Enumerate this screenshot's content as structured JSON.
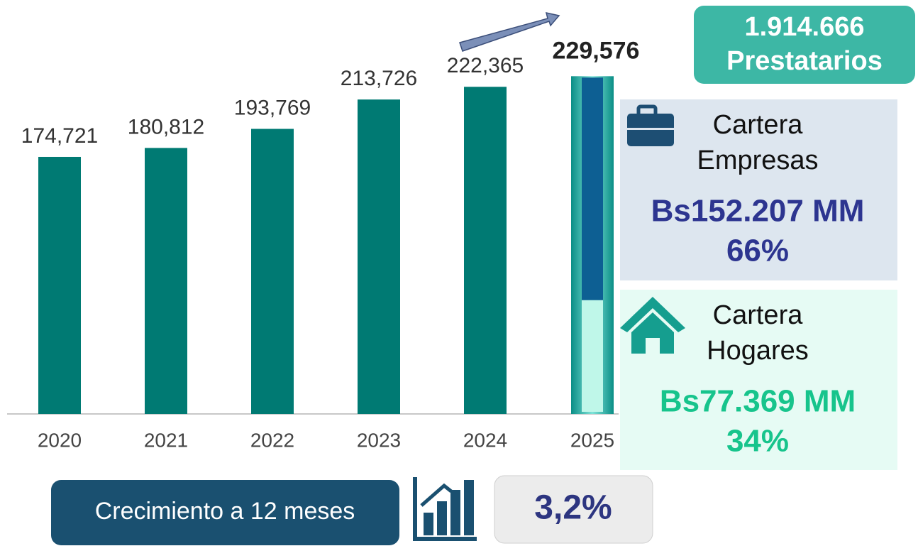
{
  "chart_data": {
    "type": "bar",
    "categories": [
      "2020",
      "2021",
      "2022",
      "2023",
      "2024",
      "2025"
    ],
    "values": [
      174721,
      180812,
      193769,
      213726,
      222365,
      229576
    ],
    "value_labels": [
      "174,721",
      "180,812",
      "193,769",
      "213,726",
      "222,365",
      "229,576"
    ],
    "color": "#007a73",
    "ylim": [
      0,
      250000
    ]
  },
  "borrowers": {
    "value_label": "1.914.666",
    "label": "Prestatarios"
  },
  "empresas": {
    "line1": "Cartera",
    "line2": "Empresas",
    "value": 152207,
    "value_label": "Bs152.207 MM",
    "share_label": "66%",
    "color": "#0d5f93"
  },
  "hogares": {
    "line1": "Cartera",
    "line2": "Hogares",
    "value": 77369,
    "value_label": "Bs77.369 MM",
    "share_label": "34%",
    "color": "#bff7e9"
  },
  "growth": {
    "label": "Crecimiento a 12 meses",
    "value_label": "3,2%"
  }
}
